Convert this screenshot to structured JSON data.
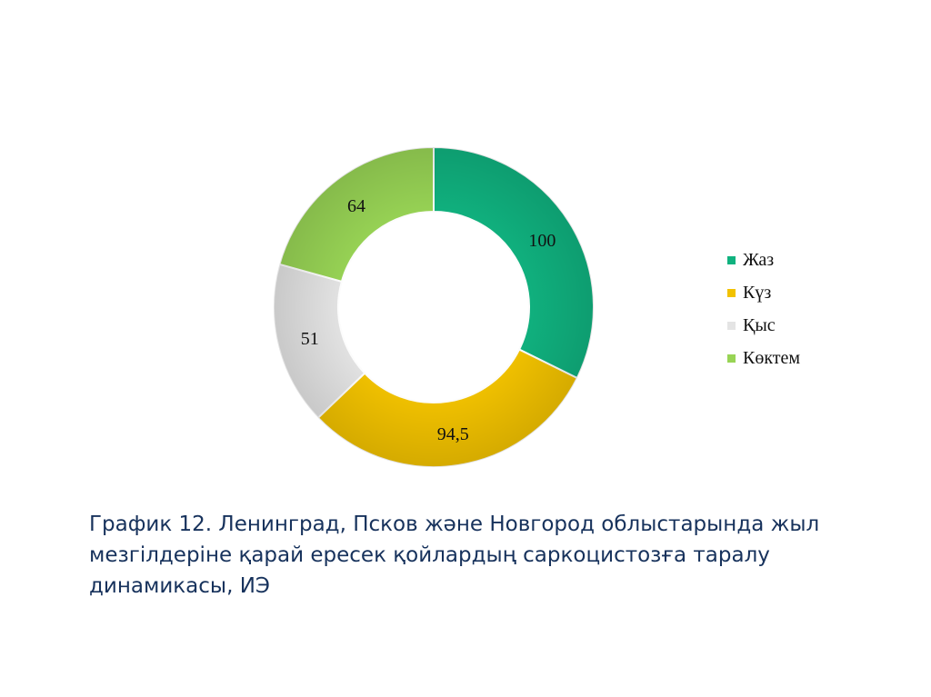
{
  "chart_data": {
    "type": "pie",
    "variant": "donut",
    "categories": [
      "Жаз",
      "Күз",
      "Қыс",
      "Көктем"
    ],
    "values": [
      100,
      94.5,
      51,
      64
    ],
    "value_labels": [
      "100",
      "94,5",
      "51",
      "64"
    ],
    "colors": [
      "#10b27f",
      "#f2c200",
      "#e4e4e4",
      "#98d455"
    ],
    "legend_position": "right"
  },
  "caption": "График 12. Ленинград, Псков және Новгород облыстарында жыл мезгілдеріне қарай ересек қойлардың саркоцистозға таралу динамикасы, ИЭ"
}
